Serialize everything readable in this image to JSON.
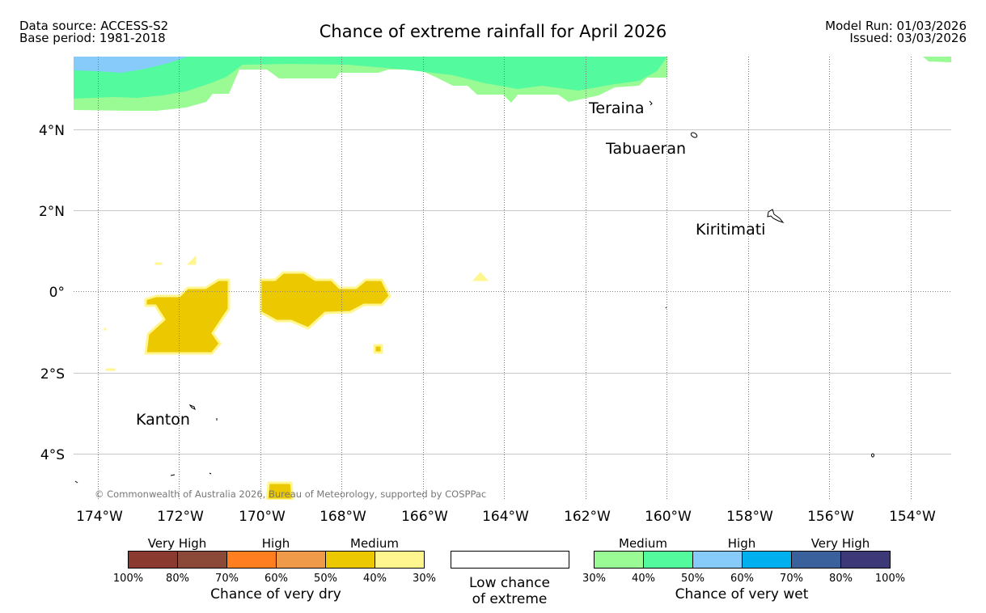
{
  "header": {
    "data_source": "Data source: ACCESS-S2",
    "base_period": "Base period: 1981-2018",
    "title": "Chance of extreme rainfall for April 2026",
    "model_run": "Model Run: 01/03/2026",
    "issued": "Issued: 03/03/2026"
  },
  "map": {
    "lon_labels": [
      "174°W",
      "172°W",
      "170°W",
      "168°W",
      "166°W",
      "164°W",
      "162°W",
      "160°W",
      "158°W",
      "156°W",
      "154°W"
    ],
    "lat_labels": [
      "4°N",
      "2°N",
      "0°",
      "2°S",
      "4°S"
    ],
    "places": [
      "Teraina",
      "Tabuaeran",
      "Kiritimati",
      "Kanton"
    ],
    "copyright": "© Commonwealth of Australia 2026, Bureau of Meteorology, supported by COSPPac"
  },
  "legend": {
    "dry": {
      "group_labels": [
        "Very High",
        "High",
        "Medium"
      ],
      "colors": [
        "#8b3a2f",
        "#8b4a38",
        "#ff7f20",
        "#ee9a48",
        "#ebc800",
        "#fff68f"
      ],
      "ticks": [
        "100%",
        "80%",
        "70%",
        "60%",
        "50%",
        "40%",
        "30%"
      ],
      "caption": "Chance of very dry"
    },
    "low": {
      "line1": "Low chance",
      "line2": "of extreme",
      "color": "#ffffff"
    },
    "wet": {
      "group_labels": [
        "Medium",
        "High",
        "Very High"
      ],
      "colors": [
        "#9afa94",
        "#53fa9e",
        "#87cbfa",
        "#00b0ee",
        "#3a619c",
        "#3d3877"
      ],
      "ticks": [
        "30%",
        "40%",
        "50%",
        "60%",
        "70%",
        "80%",
        "100%"
      ],
      "caption": "Chance of very wet"
    }
  }
}
